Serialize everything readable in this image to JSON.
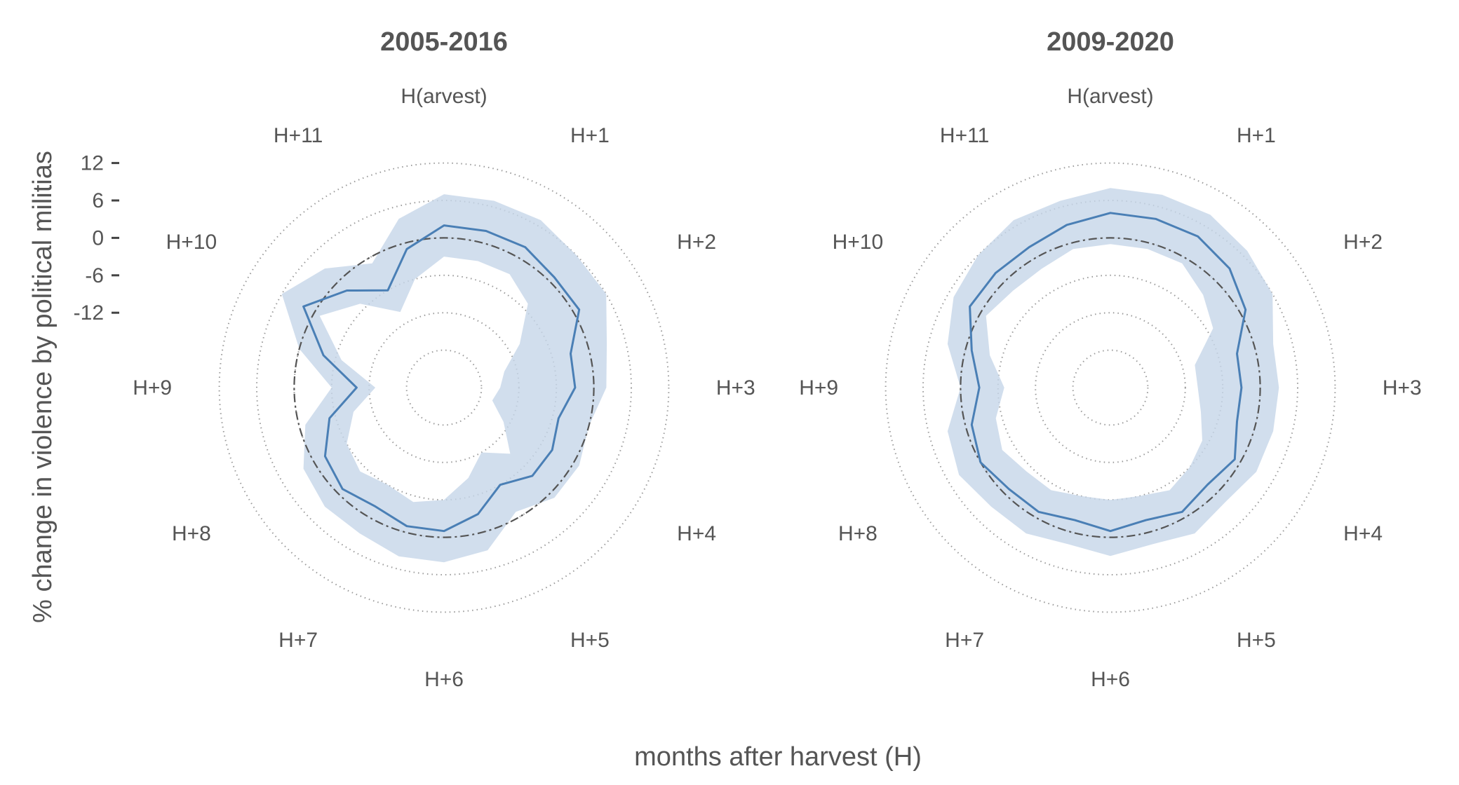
{
  "chart_data": {
    "type": "radar",
    "xlabel": "months after harvest (H)",
    "ylabel": "% change in violence by political militias",
    "theta_labels": [
      "H(arvest)",
      "H+1",
      "H+2",
      "H+3",
      "H+4",
      "H+5",
      "H+6",
      "H+7",
      "H+8",
      "H+9",
      "H+10",
      "H+11"
    ],
    "r_ticks": [
      "-12",
      "-6",
      "0",
      "6",
      "12"
    ],
    "r_tick_values": [
      -12,
      -6,
      0,
      6,
      12
    ],
    "rlim": [
      -24,
      18
    ],
    "reference_value": 0,
    "grid": true,
    "panels": [
      {
        "title": "2005-2016",
        "x": [
          0,
          0.5,
          1,
          1.5,
          2,
          2.5,
          3,
          3.5,
          4,
          4.5,
          5,
          5.5,
          6,
          6.5,
          7,
          7.5,
          8,
          8.5,
          9,
          9.5,
          10,
          10.5,
          11,
          11.5
        ],
        "estimate": [
          2,
          2,
          2,
          1,
          1,
          -3,
          -3,
          -5,
          -4,
          -4,
          -6,
          -3,
          -1,
          -1,
          -2,
          -1,
          -2,
          -5,
          -10,
          -4,
          2,
          -2,
          -6,
          -1
        ],
        "lower": [
          -3,
          -3,
          -3,
          -5,
          -10,
          -14,
          -15,
          -16,
          -13,
          -9,
          -12,
          -9,
          -6,
          -5,
          -6,
          -5,
          -6,
          -9,
          -13,
          -7,
          -1,
          -5,
          -10,
          -6
        ],
        "upper": [
          7,
          7,
          7,
          6,
          6,
          3,
          2,
          0,
          1,
          1,
          -1,
          3,
          4,
          4,
          3,
          3,
          2,
          -1,
          -6,
          0,
          6,
          3,
          -1,
          4
        ]
      },
      {
        "title": "2009-2020",
        "x": [
          0,
          0.5,
          1,
          1.5,
          2,
          2.5,
          3,
          3.5,
          4,
          4.5,
          5,
          5.5,
          6,
          6.5,
          7,
          7.5,
          8,
          8.5,
          9,
          9.5,
          10,
          10.5,
          11,
          11.5
        ],
        "estimate": [
          4,
          4,
          4,
          3,
          1,
          -3,
          -3,
          -3,
          -1,
          -2,
          -1,
          -2,
          -1,
          -2,
          -1,
          -1,
          0,
          -1,
          -3,
          -1,
          2,
          2,
          2,
          3
        ],
        "lower": [
          -1,
          -1,
          -1,
          -3,
          -5,
          -10,
          -10,
          -9,
          -7,
          -6,
          -5,
          -6,
          -6,
          -6,
          -5,
          -5,
          -4,
          -5,
          -7,
          -4,
          -1,
          -2,
          -2,
          -1
        ],
        "upper": [
          8,
          8,
          8,
          7,
          6,
          3,
          3,
          3,
          3,
          2,
          3,
          2,
          3,
          2,
          3,
          3,
          4,
          3,
          0,
          3,
          5,
          6,
          7,
          7
        ]
      }
    ]
  }
}
